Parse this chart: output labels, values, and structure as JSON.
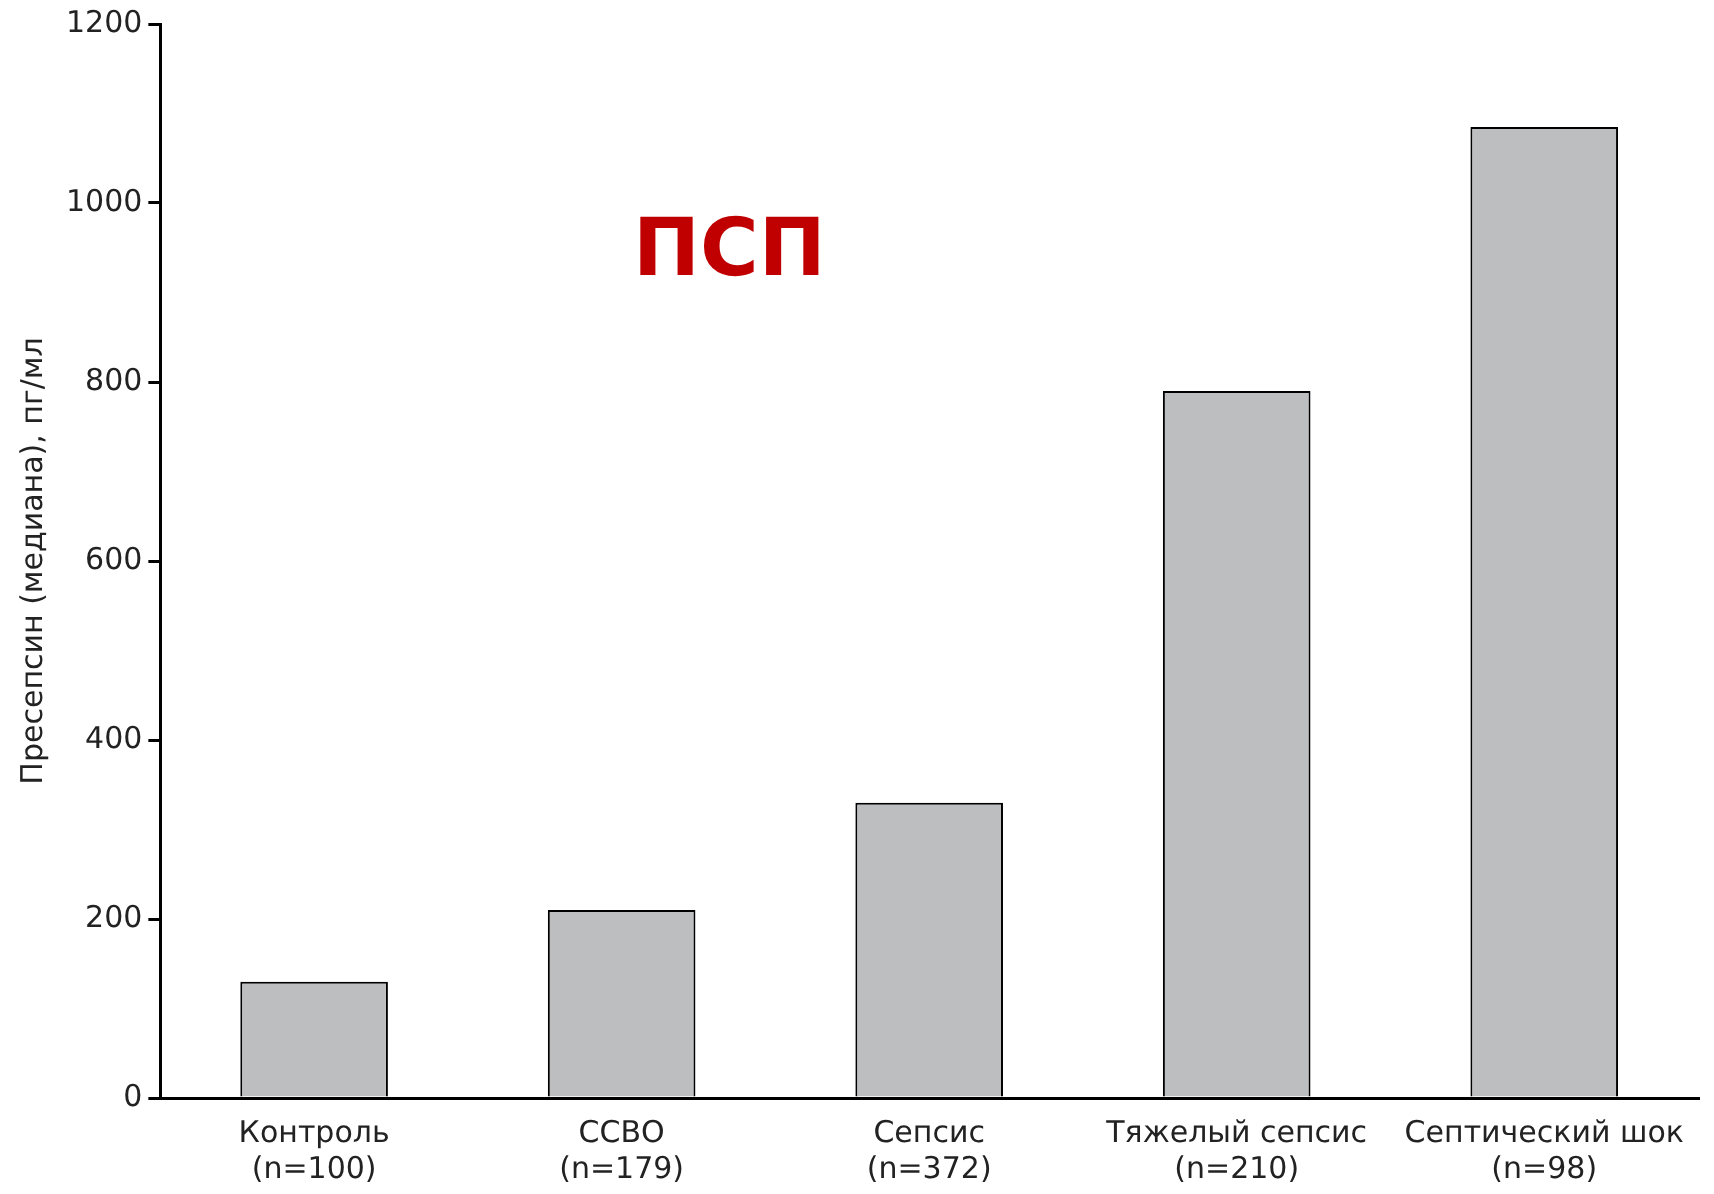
{
  "chart_data": {
    "type": "bar",
    "ylabel": "Пресепсин (медиана), пг/мл",
    "categories": [
      "Контроль\n(n=100)",
      "ССВО\n(n=179)",
      "Сепсис\n(n=372)",
      "Тяжелый сепсис\n(n=210)",
      "Септический шок\n(n=98)"
    ],
    "values": [
      130,
      210,
      330,
      790,
      1085
    ],
    "color": "#bdbec0",
    "ylim": [
      0,
      1200
    ],
    "yticks": [
      0,
      200,
      400,
      600,
      800,
      1000,
      1200
    ],
    "grid": false,
    "legend": false,
    "annotations": [
      "ПСП"
    ]
  }
}
